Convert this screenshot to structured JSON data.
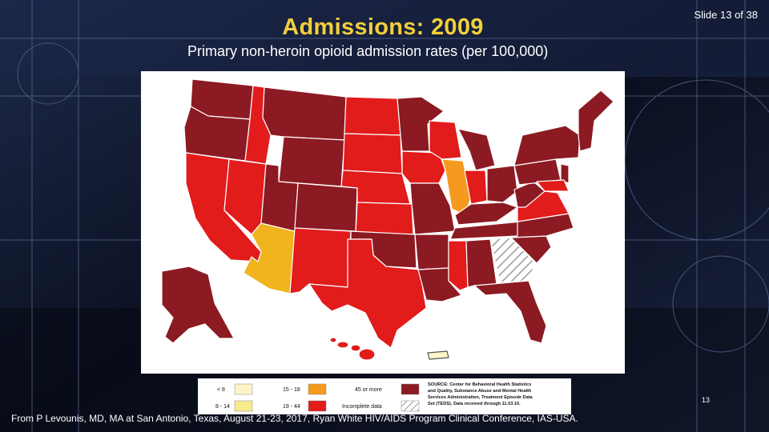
{
  "slide": {
    "title": "Admissions: 2009",
    "counter": "Slide 13 of 38",
    "subtitle": "Primary non-heroin opioid admission rates (per 100,000)",
    "page_number": "13",
    "footer": "From P Levounis, MD, MA at San Antonio, Texas, August 21-23, 2017, Ryan White HIV/AIDS Program Clinical Conference, IAS-USA."
  },
  "legend": {
    "items": [
      {
        "label": "< 8",
        "color": "#fdf5c9"
      },
      {
        "label": "8 - 14",
        "color": "#f8ec8a"
      },
      {
        "label": "15 - 18",
        "color": "#f59a1f"
      },
      {
        "label": "19 - 44",
        "color": "#e21b1b"
      },
      {
        "label": "45 or more",
        "color": "#8c1a22"
      },
      {
        "label": "Incomplete data",
        "pattern": "hatched"
      }
    ],
    "source_lines": [
      "SOURCE: Center for Behavioral Health Statistics",
      "and Quality, Substance Abuse and Mental Health",
      "Services Administration, Treatment Episode Data",
      "Set (TEDS). Data received through 11.03.10."
    ]
  },
  "colors": {
    "high": "#8c1a22",
    "mid": "#e21b1b",
    "orange": "#f59a1f",
    "yellow": "#f0b41c",
    "title": "#f2cf3c"
  }
}
